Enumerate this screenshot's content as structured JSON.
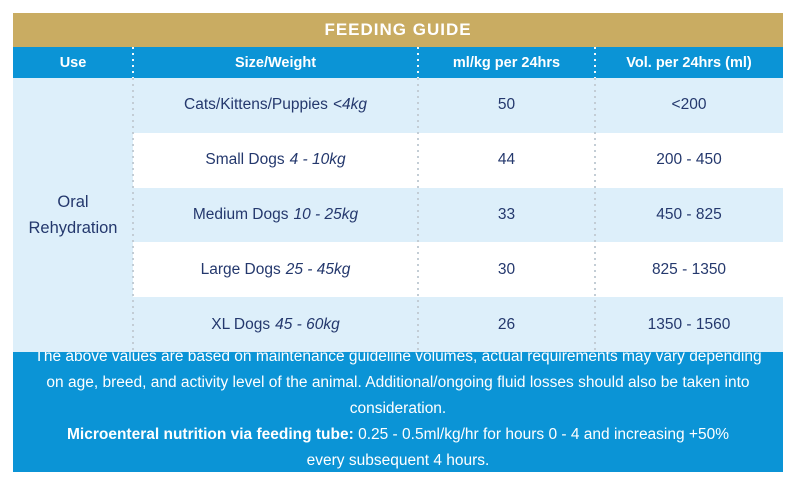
{
  "title": "FEEDING GUIDE",
  "colors": {
    "gold_accent": "#c9ac62",
    "blue_accent": "#0b94d6",
    "row_light_blue": "#ddeffa",
    "navy_text": "#24386d"
  },
  "columns": {
    "use": "Use",
    "size_weight": "Size/Weight",
    "ml_per_kg": "ml/kg per 24hrs",
    "vol": "Vol. per 24hrs (ml)"
  },
  "use_group_label": "Oral Rehydration",
  "rows": [
    {
      "size": "Cats/Kittens/Puppies",
      "weight": "<4kg",
      "ml_per_kg": "50",
      "vol": "<200"
    },
    {
      "size": "Small Dogs",
      "weight": "4 - 10kg",
      "ml_per_kg": "44",
      "vol": "200 - 450"
    },
    {
      "size": "Medium Dogs",
      "weight": "10 - 25kg",
      "ml_per_kg": "33",
      "vol": "450 - 825"
    },
    {
      "size": "Large Dogs",
      "weight": "25 - 45kg",
      "ml_per_kg": "30",
      "vol": "825 - 1350"
    },
    {
      "size": "XL Dogs",
      "weight": "45 - 60kg",
      "ml_per_kg": "26",
      "vol": "1350 - 1560"
    }
  ],
  "footer": {
    "paragraph1": "The above values are based on maintenance guideline volumes, actual requirements may vary depending on age, breed, and activity level of the animal. Additional/ongoing fluid losses should also be taken into consideration.",
    "paragraph2_bold": "Microenteral nutrition via feeding tube:",
    "paragraph2_rest": " 0.25 - 0.5ml/kg/hr for hours 0 - 4 and increasing +50% every subsequent 4 hours."
  }
}
